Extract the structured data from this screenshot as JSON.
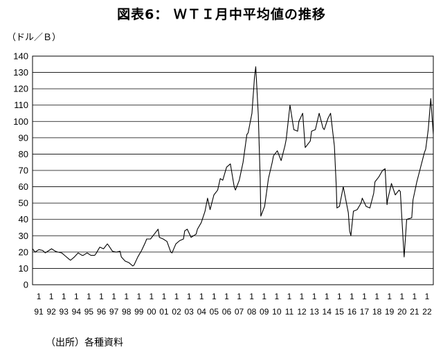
{
  "page": {
    "title": "図表6： ＷＴＩ月中平均値の推移",
    "source": "（出所）各種資料"
  },
  "chart_data": {
    "type": "line",
    "title": "図表6： ＷＴＩ月中平均値の推移",
    "ylabel": "（ドル／Ｂ）",
    "xlabel": "",
    "ylim": [
      0,
      140
    ],
    "yticks": [
      0,
      10,
      20,
      30,
      40,
      50,
      60,
      70,
      80,
      90,
      100,
      110,
      120,
      130,
      140
    ],
    "grid": true,
    "legend": "none",
    "x_tick_labels": [
      [
        "1",
        "91"
      ],
      [
        "1",
        "92"
      ],
      [
        "1",
        "93"
      ],
      [
        "1",
        "94"
      ],
      [
        "1",
        "95"
      ],
      [
        "1",
        "96"
      ],
      [
        "1",
        "97"
      ],
      [
        "1",
        "98"
      ],
      [
        "1",
        "99"
      ],
      [
        "1",
        "00"
      ],
      [
        "1",
        "01"
      ],
      [
        "1",
        "02"
      ],
      [
        "1",
        "03"
      ],
      [
        "1",
        "04"
      ],
      [
        "1",
        "05"
      ],
      [
        "1",
        "06"
      ],
      [
        "1",
        "07"
      ],
      [
        "1",
        "08"
      ],
      [
        "1",
        "09"
      ],
      [
        "1",
        "10"
      ],
      [
        "1",
        "11"
      ],
      [
        "1",
        "12"
      ],
      [
        "1",
        "13"
      ],
      [
        "1",
        "14"
      ],
      [
        "1",
        "15"
      ],
      [
        "1",
        "16"
      ],
      [
        "1",
        "17"
      ],
      [
        "1",
        "18"
      ],
      [
        "1",
        "19"
      ],
      [
        "1",
        "20"
      ],
      [
        "1",
        "21"
      ],
      [
        "1",
        "22"
      ]
    ],
    "line_color": "#000000",
    "series": [
      {
        "x": [
          1991.0,
          1991.2,
          1991.5,
          1991.8,
          1992.0,
          1992.3,
          1992.5,
          1992.8,
          1993.0,
          1993.3,
          1993.6,
          1993.9,
          1994.0,
          1994.3,
          1994.6,
          1994.9,
          1995.0,
          1995.3,
          1995.6,
          1995.9,
          1996.0,
          1996.3,
          1996.6,
          1996.9,
          1997.0,
          1997.3,
          1997.6,
          1997.9,
          1998.0,
          1998.3,
          1998.6,
          1998.9,
          1999.0,
          1999.3,
          1999.6,
          1999.9,
          2000.0,
          2000.3,
          2000.6,
          2000.9,
          2001.0,
          2001.3,
          2001.6,
          2001.9,
          2002.0,
          2002.3,
          2002.6,
          2002.9,
          2003.0,
          2003.2,
          2003.5,
          2003.9,
          2004.0,
          2004.3,
          2004.6,
          2004.8,
          2005.0,
          2005.3,
          2005.6,
          2005.8,
          2006.0,
          2006.3,
          2006.6,
          2006.9,
          2007.0,
          2007.3,
          2007.6,
          2007.9,
          2008.0,
          2008.3,
          2008.5,
          2008.6,
          2008.8,
          2008.95,
          2009.0,
          2009.3,
          2009.6,
          2009.9,
          2010.0,
          2010.3,
          2010.6,
          2010.9,
          2011.0,
          2011.3,
          2011.6,
          2011.9,
          2012.0,
          2012.3,
          2012.5,
          2012.9,
          2013.0,
          2013.3,
          2013.6,
          2013.9,
          2014.0,
          2014.3,
          2014.5,
          2014.8,
          2014.95,
          2015.0,
          2015.2,
          2015.5,
          2015.9,
          2016.0,
          2016.1,
          2016.3,
          2016.6,
          2016.9,
          2017.0,
          2017.3,
          2017.6,
          2017.9,
          2018.0,
          2018.3,
          2018.6,
          2018.8,
          2018.95,
          2019.0,
          2019.3,
          2019.6,
          2019.9,
          2020.0,
          2020.2,
          2020.3,
          2020.5,
          2020.9,
          2021.0,
          2021.3,
          2021.6,
          2021.9,
          2022.0,
          2022.2,
          2022.4,
          2022.6
        ],
        "values": [
          22.0,
          20.0,
          21.5,
          21.0,
          19.5,
          21.0,
          22.0,
          20.5,
          20.0,
          19.5,
          17.5,
          15.5,
          15.0,
          17.0,
          19.5,
          18.0,
          18.0,
          19.5,
          18.0,
          18.0,
          19.0,
          23.0,
          22.0,
          25.0,
          24.0,
          20.5,
          20.0,
          20.5,
          17.0,
          14.5,
          13.5,
          11.5,
          12.0,
          17.0,
          21.0,
          26.0,
          28.0,
          28.0,
          31.0,
          34.0,
          29.0,
          28.0,
          26.5,
          20.0,
          19.5,
          25.0,
          27.0,
          28.0,
          33.0,
          34.0,
          29.0,
          31.0,
          34.0,
          38.0,
          45.0,
          53.0,
          46.0,
          55.0,
          58.0,
          65.0,
          64.0,
          72.0,
          74.0,
          60.0,
          58.0,
          64.0,
          75.0,
          92.0,
          93.0,
          105.0,
          127.0,
          133.5,
          104.0,
          65.0,
          42.0,
          48.0,
          65.0,
          75.0,
          79.0,
          82.0,
          76.0,
          85.0,
          89.0,
          110.0,
          95.0,
          94.0,
          100.0,
          105.0,
          84.0,
          88.0,
          94.0,
          95.0,
          105.0,
          96.0,
          95.0,
          102.0,
          105.0,
          85.0,
          60.0,
          47.0,
          48.0,
          60.0,
          44.0,
          33.0,
          30.0,
          45.0,
          46.0,
          50.0,
          53.0,
          48.0,
          47.0,
          56.0,
          63.0,
          66.0,
          70.0,
          71.0,
          49.0,
          52.0,
          62.0,
          55.0,
          58.0,
          57.0,
          30.0,
          17.0,
          40.0,
          41.0,
          52.0,
          63.0,
          72.0,
          81.0,
          83.0,
          95.0,
          114.0,
          92.0
        ]
      }
    ]
  }
}
